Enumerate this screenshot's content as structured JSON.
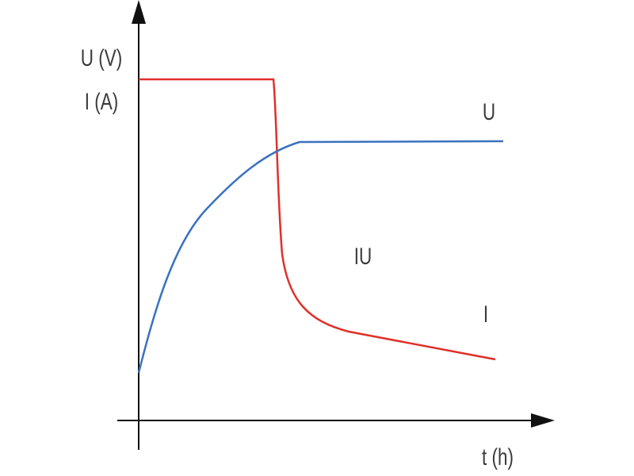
{
  "axes": {
    "y_label_1": "U (V)",
    "y_label_2": "I (A)",
    "x_label": "t (h)"
  },
  "curves": {
    "voltage_label": "U",
    "current_label": "I",
    "mode_label": "IU"
  }
}
